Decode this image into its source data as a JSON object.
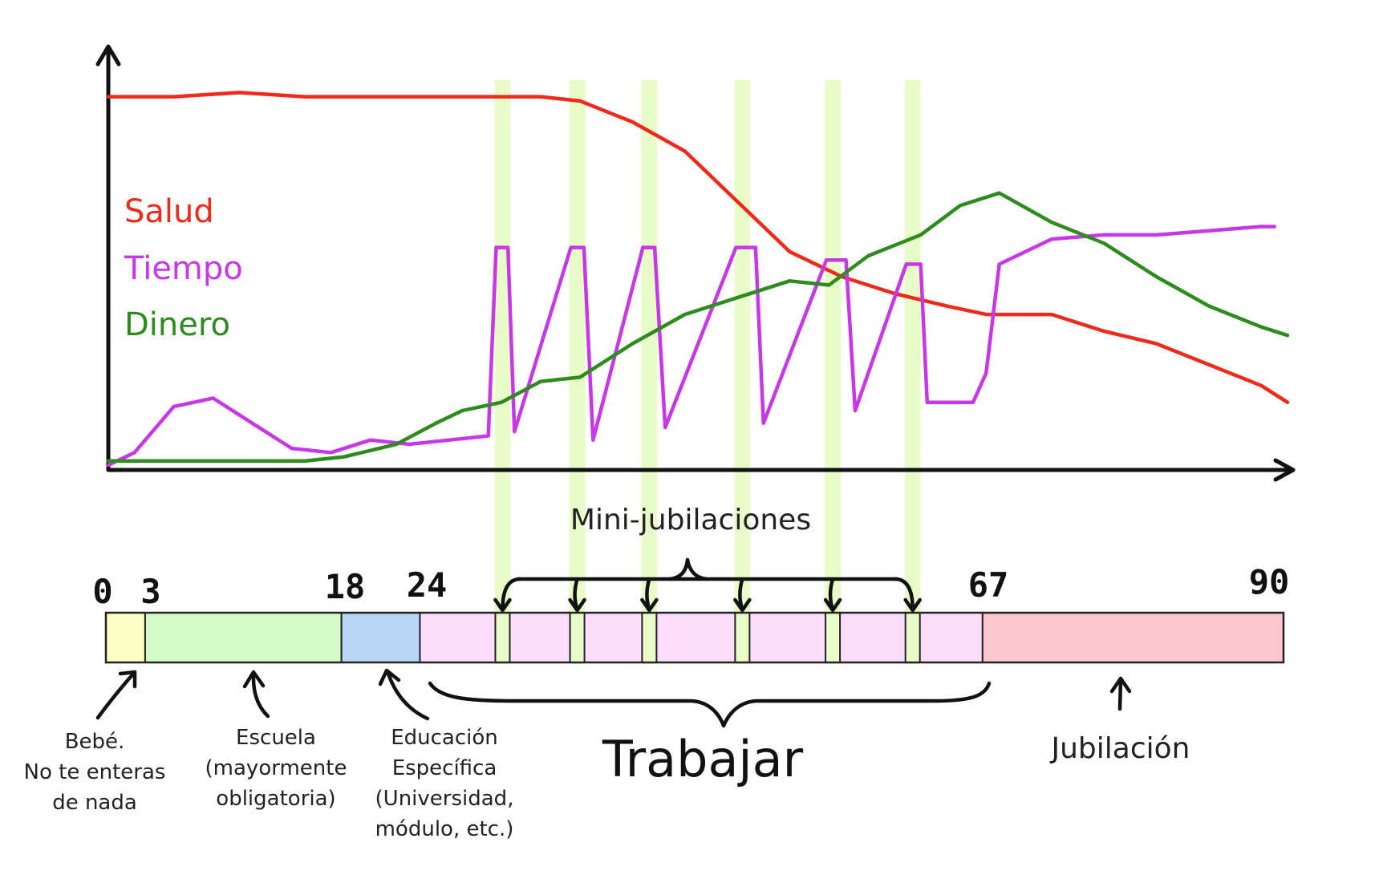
{
  "legend": {
    "salud": "Salud",
    "tiempo": "Tiempo",
    "dinero": "Dinero"
  },
  "colors": {
    "salud": "#ee2a1b",
    "tiempo": "#c837e6",
    "dinero": "#2e8b1e",
    "highlight": "#e9fbc8",
    "baby": "#fdfdc6",
    "school": "#d2f9c6",
    "education": "#b9d4f5",
    "work": "#fbdcfa",
    "retirement": "#fbc6cc",
    "minibreak": "#e9fbc8"
  },
  "timeline": {
    "ticks": [
      "0",
      "3",
      "18",
      "24",
      "67",
      "90"
    ],
    "segments": [
      {
        "from": 0,
        "to": 3,
        "key": "baby"
      },
      {
        "from": 3,
        "to": 18,
        "key": "school"
      },
      {
        "from": 18,
        "to": 24,
        "key": "education"
      },
      {
        "from": 24,
        "to": 67,
        "key": "work"
      },
      {
        "from": 67,
        "to": 90,
        "key": "retirement"
      }
    ],
    "mini_breaks_age": [
      29.6,
      35.3,
      40.8,
      47.9,
      54.8,
      60.9
    ]
  },
  "annotations": {
    "mini": "Mini-jubilaciones",
    "work": "Trabajar",
    "baby": [
      "Bebé.",
      "No te enteras",
      "de nada"
    ],
    "school": [
      "Escuela",
      "(mayormente",
      "obligatoria)"
    ],
    "education": [
      "Educación",
      "Específica",
      "(Universidad,",
      "módulo, etc.)"
    ],
    "retirement": "Jubilación"
  },
  "chart_data": {
    "type": "line",
    "xlabel": "",
    "ylabel": "",
    "x_range": [
      0,
      90
    ],
    "y_range": [
      0,
      1
    ],
    "series": [
      {
        "name": "Salud",
        "x": [
          0,
          5,
          10,
          15,
          20,
          25,
          30,
          33,
          36,
          40,
          44,
          48,
          52,
          56,
          60,
          64,
          67,
          72,
          76,
          80,
          84,
          88,
          90
        ],
        "y": [
          0.88,
          0.88,
          0.89,
          0.88,
          0.88,
          0.88,
          0.88,
          0.88,
          0.87,
          0.82,
          0.75,
          0.63,
          0.51,
          0.45,
          0.41,
          0.38,
          0.36,
          0.36,
          0.32,
          0.29,
          0.24,
          0.19,
          0.15
        ]
      },
      {
        "name": "Tiempo",
        "x": [
          0,
          2,
          5,
          8,
          11,
          14,
          17,
          20,
          23,
          26,
          29,
          29.6,
          30.5,
          31,
          35.3,
          36.3,
          37,
          40.8,
          41.7,
          42.5,
          47.9,
          49.4,
          50,
          54.8,
          56.3,
          57,
          60.9,
          62,
          62.5,
          66,
          67,
          68,
          72,
          76,
          80,
          84,
          88,
          89
        ],
        "y": [
          0.0,
          0.03,
          0.14,
          0.16,
          0.1,
          0.04,
          0.03,
          0.06,
          0.05,
          0.06,
          0.07,
          0.52,
          0.52,
          0.08,
          0.52,
          0.52,
          0.06,
          0.52,
          0.52,
          0.09,
          0.52,
          0.52,
          0.1,
          0.49,
          0.49,
          0.13,
          0.48,
          0.48,
          0.15,
          0.15,
          0.22,
          0.48,
          0.54,
          0.55,
          0.55,
          0.56,
          0.57,
          0.57
        ]
      },
      {
        "name": "Dinero",
        "x": [
          0,
          5,
          10,
          15,
          18,
          22,
          25,
          27,
          30,
          33,
          36,
          40,
          44,
          48,
          52,
          55,
          58,
          62,
          65,
          68,
          72,
          76,
          80,
          84,
          88,
          90
        ],
        "y": [
          0.01,
          0.01,
          0.01,
          0.01,
          0.02,
          0.05,
          0.1,
          0.13,
          0.15,
          0.2,
          0.21,
          0.29,
          0.36,
          0.4,
          0.44,
          0.43,
          0.5,
          0.55,
          0.62,
          0.65,
          0.58,
          0.53,
          0.45,
          0.38,
          0.33,
          0.31
        ]
      }
    ]
  }
}
